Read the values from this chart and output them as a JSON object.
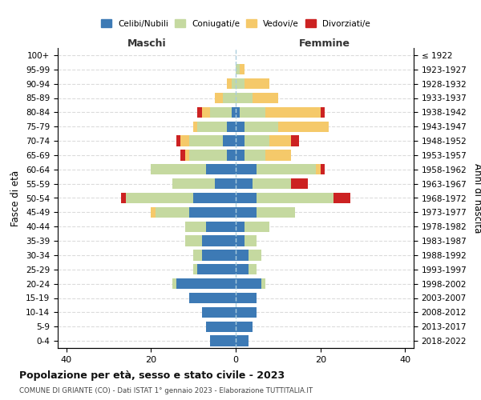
{
  "age_groups": [
    "0-4",
    "5-9",
    "10-14",
    "15-19",
    "20-24",
    "25-29",
    "30-34",
    "35-39",
    "40-44",
    "45-49",
    "50-54",
    "55-59",
    "60-64",
    "65-69",
    "70-74",
    "75-79",
    "80-84",
    "85-89",
    "90-94",
    "95-99",
    "100+"
  ],
  "birth_years": [
    "2018-2022",
    "2013-2017",
    "2008-2012",
    "2003-2007",
    "1998-2002",
    "1993-1997",
    "1988-1992",
    "1983-1987",
    "1978-1982",
    "1973-1977",
    "1968-1972",
    "1963-1967",
    "1958-1962",
    "1953-1957",
    "1948-1952",
    "1943-1947",
    "1938-1942",
    "1933-1937",
    "1928-1932",
    "1923-1927",
    "≤ 1922"
  ],
  "maschi": {
    "celibi": [
      6,
      7,
      8,
      11,
      14,
      9,
      8,
      8,
      7,
      11,
      10,
      5,
      7,
      2,
      3,
      2,
      1,
      0,
      0,
      0,
      0
    ],
    "coniugati": [
      0,
      0,
      0,
      0,
      1,
      1,
      2,
      4,
      5,
      8,
      16,
      10,
      13,
      9,
      8,
      7,
      5,
      3,
      1,
      0,
      0
    ],
    "vedovi": [
      0,
      0,
      0,
      0,
      0,
      0,
      0,
      0,
      0,
      1,
      0,
      0,
      0,
      1,
      2,
      1,
      2,
      2,
      1,
      0,
      0
    ],
    "divorziati": [
      0,
      0,
      0,
      0,
      0,
      0,
      0,
      0,
      0,
      0,
      1,
      0,
      0,
      1,
      1,
      0,
      1,
      0,
      0,
      0,
      0
    ]
  },
  "femmine": {
    "nubili": [
      3,
      4,
      5,
      5,
      6,
      3,
      3,
      2,
      2,
      5,
      5,
      4,
      5,
      2,
      2,
      2,
      1,
      0,
      0,
      0,
      0
    ],
    "coniugate": [
      0,
      0,
      0,
      0,
      1,
      2,
      3,
      3,
      6,
      9,
      18,
      9,
      14,
      5,
      6,
      8,
      6,
      4,
      2,
      1,
      0
    ],
    "vedove": [
      0,
      0,
      0,
      0,
      0,
      0,
      0,
      0,
      0,
      0,
      0,
      0,
      1,
      6,
      5,
      12,
      13,
      6,
      6,
      1,
      0
    ],
    "divorziate": [
      0,
      0,
      0,
      0,
      0,
      0,
      0,
      0,
      0,
      0,
      4,
      4,
      1,
      0,
      2,
      0,
      1,
      0,
      0,
      0,
      0
    ]
  },
  "colors": {
    "celibi": "#3d7ab5",
    "coniugati": "#c5d9a0",
    "vedovi": "#f5c96a",
    "divorziati": "#cc2222"
  },
  "xlim": [
    -42,
    42
  ],
  "xticks": [
    -40,
    -20,
    0,
    20,
    40
  ],
  "xticklabels": [
    "40",
    "20",
    "0",
    "20",
    "40"
  ],
  "title": "Popolazione per età, sesso e stato civile - 2023",
  "subtitle": "COMUNE DI GRIANTE (CO) - Dati ISTAT 1° gennaio 2023 - Elaborazione TUTTITALIA.IT",
  "ylabel_left": "Fasce di età",
  "ylabel_right": "Anni di nascita",
  "maschi_label": "Maschi",
  "femmine_label": "Femmine",
  "legend_labels": [
    "Celibi/Nubili",
    "Coniugati/e",
    "Vedovi/e",
    "Divorziati/e"
  ]
}
